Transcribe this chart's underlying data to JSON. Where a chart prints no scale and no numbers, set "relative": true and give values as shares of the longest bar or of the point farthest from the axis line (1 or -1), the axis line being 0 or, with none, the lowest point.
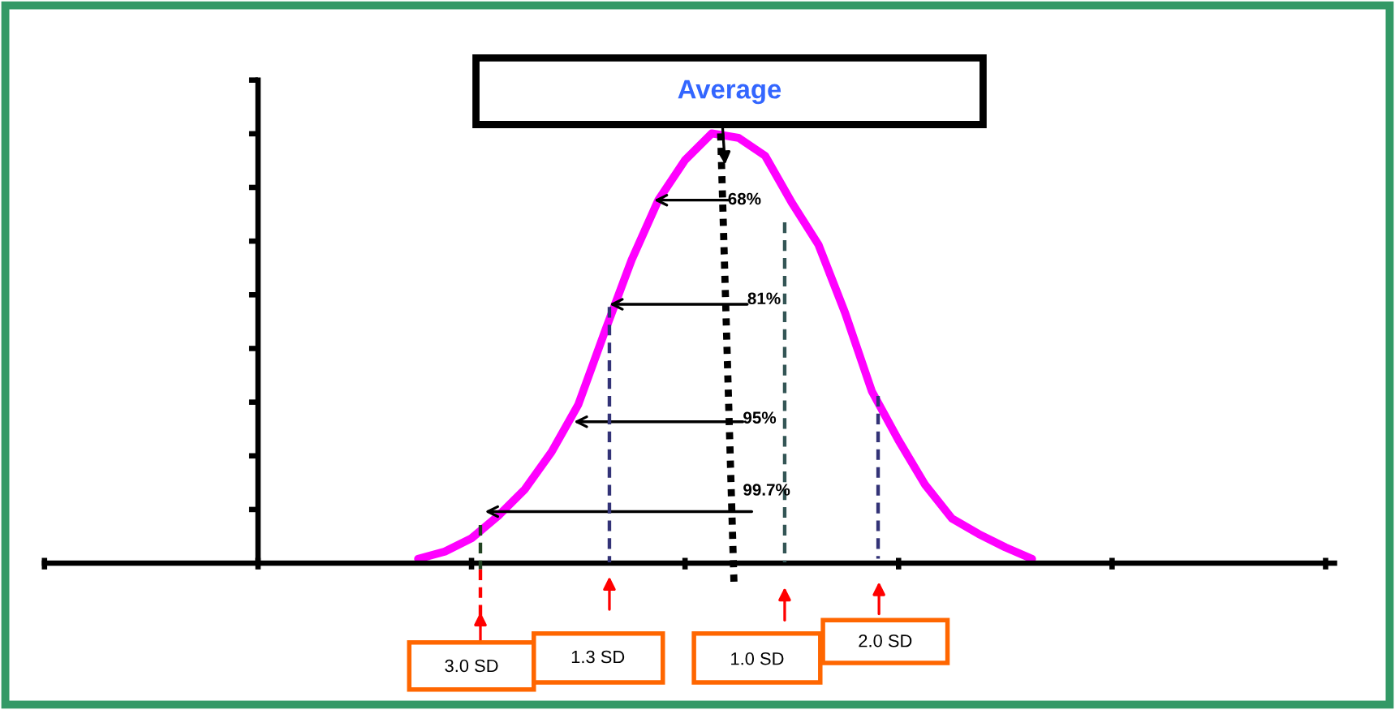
{
  "chart_data": {
    "type": "line",
    "relative": true,
    "categories": [
      null,
      null,
      null,
      null,
      null,
      null,
      null,
      null,
      null,
      null,
      null,
      null,
      null,
      null,
      null,
      null,
      null,
      null,
      null,
      null,
      null,
      null,
      null,
      null,
      null,
      null,
      null,
      null,
      null,
      null,
      null,
      null,
      null,
      null,
      null,
      null,
      null,
      null,
      null,
      null,
      null,
      null,
      null,
      null,
      null,
      null,
      null,
      null,
      null
    ],
    "series": [
      {
        "color": "#ff00ff",
        "values": [
          null,
          null,
          null,
          null,
          null,
          null,
          null,
          null,
          null,
          null,
          null,
          null,
          null,
          null,
          0.01,
          0.027,
          0.058,
          0.11,
          0.172,
          0.259,
          0.369,
          0.54,
          0.706,
          0.845,
          0.938,
          1.0,
          0.99,
          0.948,
          0.839,
          0.741,
          0.582,
          0.4,
          0.286,
          0.182,
          0.104,
          0.068,
          0.037,
          0.01,
          null,
          null,
          null,
          null,
          null,
          null,
          null,
          null,
          null,
          null,
          null
        ]
      }
    ],
    "annotations": [
      "Average",
      "68%",
      "81%",
      "95%",
      "99.7%",
      "3.0 SD",
      "1.3 SD",
      "1.0 SD",
      "2.0 SD"
    ]
  }
}
